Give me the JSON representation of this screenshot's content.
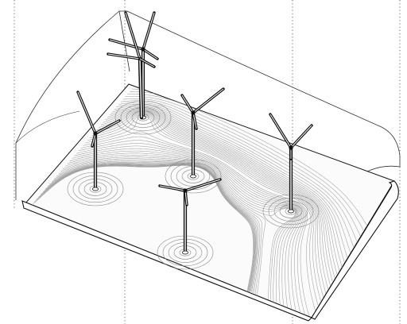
{
  "figure": {
    "description_hidden": "",
    "stroke_color": "#111111",
    "streamline_color": "#9a9a9a",
    "guide_color": "#444444",
    "background": "#ffffff"
  },
  "turbines": [
    {
      "id": "turbine-1"
    },
    {
      "id": "turbine-2"
    },
    {
      "id": "turbine-3"
    },
    {
      "id": "turbine-4"
    },
    {
      "id": "turbine-5"
    },
    {
      "id": "turbine-6"
    }
  ],
  "guides": [
    {
      "id": "guide-left"
    },
    {
      "id": "guide-center-left"
    },
    {
      "id": "guide-center-right"
    },
    {
      "id": "guide-right"
    }
  ]
}
